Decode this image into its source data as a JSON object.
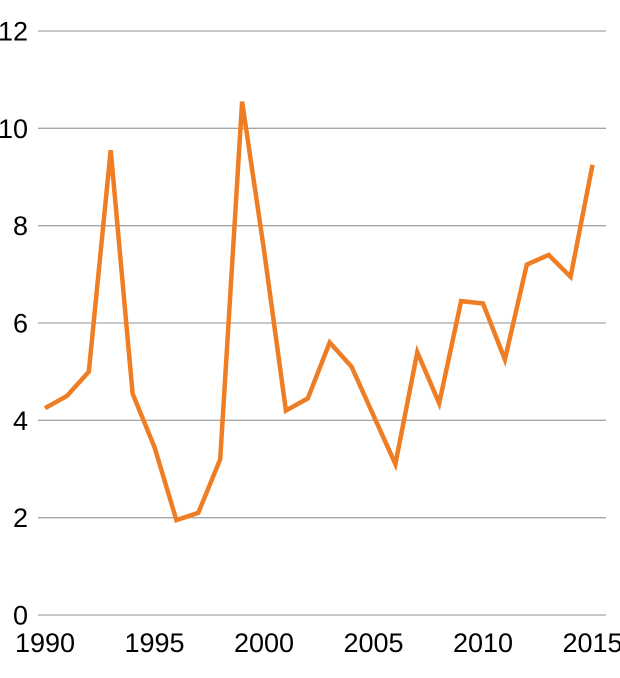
{
  "chart_data": {
    "type": "line",
    "title": "",
    "xlabel": "",
    "ylabel": "",
    "x": [
      1990,
      1991,
      1992,
      1993,
      1994,
      1995,
      1996,
      1997,
      1998,
      1999,
      2000,
      2001,
      2002,
      2003,
      2004,
      2005,
      2006,
      2007,
      2008,
      2009,
      2010,
      2011,
      2012,
      2013,
      2014,
      2015
    ],
    "series": [
      {
        "name": "value",
        "values": [
          4.25,
          4.5,
          5.0,
          9.55,
          4.55,
          3.45,
          1.95,
          2.1,
          3.2,
          10.55,
          7.5,
          4.2,
          4.45,
          5.6,
          5.1,
          4.1,
          3.1,
          5.4,
          4.35,
          6.45,
          6.4,
          5.25,
          7.2,
          7.4,
          6.95,
          9.25
        ]
      }
    ],
    "xlim": [
      1990,
      2015
    ],
    "ylim": [
      0,
      12
    ],
    "y_ticks": [
      0,
      2,
      4,
      6,
      8,
      10,
      12
    ],
    "y_tick_labels": [
      "0",
      "2",
      "4",
      "6",
      "8",
      "10",
      "12"
    ],
    "x_ticks": [
      1990,
      1995,
      2000,
      2005,
      2010,
      2015
    ],
    "x_tick_labels": [
      "1990",
      "1995",
      "2000",
      "2005",
      "2010",
      "2015"
    ],
    "grid": true,
    "legend": false
  },
  "colors": {
    "line": "#EF7D23",
    "gridline": "#A6A6A6",
    "tick_text": "#000000",
    "background": "#FFFFFF"
  }
}
